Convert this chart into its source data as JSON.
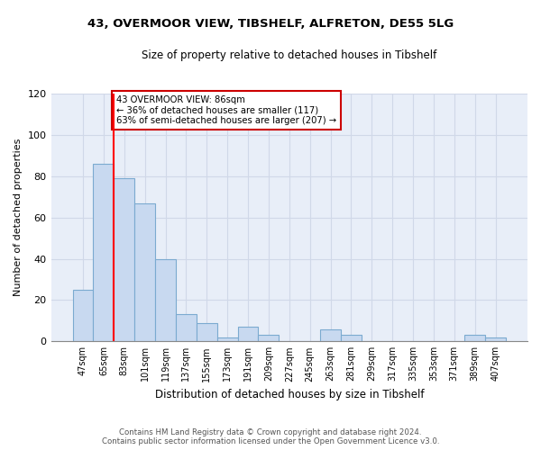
{
  "title": "43, OVERMOOR VIEW, TIBSHELF, ALFRETON, DE55 5LG",
  "subtitle": "Size of property relative to detached houses in Tibshelf",
  "xlabel": "Distribution of detached houses by size in Tibshelf",
  "ylabel": "Number of detached properties",
  "bar_labels": [
    "47sqm",
    "65sqm",
    "83sqm",
    "101sqm",
    "119sqm",
    "137sqm",
    "155sqm",
    "173sqm",
    "191sqm",
    "209sqm",
    "227sqm",
    "245sqm",
    "263sqm",
    "281sqm",
    "299sqm",
    "317sqm",
    "335sqm",
    "353sqm",
    "371sqm",
    "389sqm",
    "407sqm"
  ],
  "bar_values": [
    25,
    86,
    79,
    67,
    40,
    13,
    9,
    2,
    7,
    3,
    0,
    0,
    6,
    3,
    0,
    0,
    0,
    0,
    0,
    3,
    2
  ],
  "bar_color": "#c8d9f0",
  "bar_edge_color": "#7baad0",
  "vline_color": "red",
  "ylim": [
    0,
    120
  ],
  "yticks": [
    0,
    20,
    40,
    60,
    80,
    100,
    120
  ],
  "annotation_text": "43 OVERMOOR VIEW: 86sqm\n← 36% of detached houses are smaller (117)\n63% of semi-detached houses are larger (207) →",
  "annotation_box_color": "white",
  "annotation_box_edge": "#cc0000",
  "footer_line1": "Contains HM Land Registry data © Crown copyright and database right 2024.",
  "footer_line2": "Contains public sector information licensed under the Open Government Licence v3.0.",
  "bg_color": "white",
  "grid_color": "#d0d8e8"
}
